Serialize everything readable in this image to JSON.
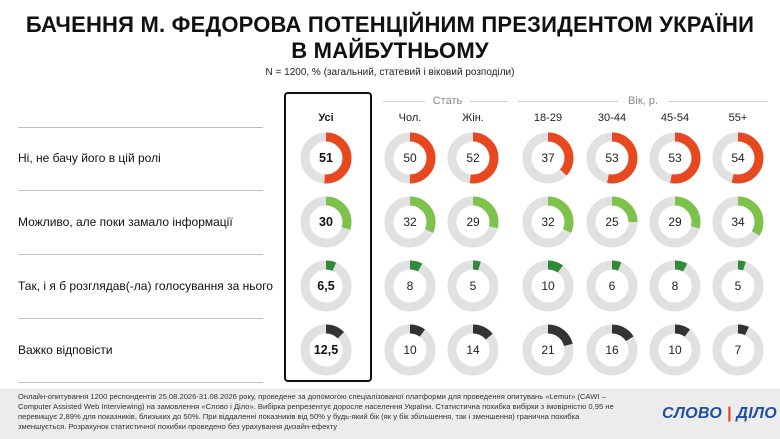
{
  "header": {
    "title_line1": "БАЧЕННЯ М. ФЕДОРОВА ПОТЕНЦІЙНИМ ПРЕЗИДЕНТОМ УКРАЇНИ",
    "title_line2": "В МАЙБУТНЬОМУ",
    "subtitle": "N = 1200, % (загальний, статевий і віковий розподіли)"
  },
  "groups": {
    "sex": "Стать",
    "age": "Вік, р."
  },
  "colors": {
    "no": "#e8481f",
    "maybe": "#7dc24a",
    "yes": "#2f8a3c",
    "hard": "#333333",
    "track": "#e1e1e1"
  },
  "chart_data": {
    "type": "donut-grid",
    "columns": [
      "Усі",
      "Чол.",
      "Жін.",
      "18-29",
      "30-44",
      "45-54",
      "55+"
    ],
    "rows": [
      {
        "label": "Ні, не бачу його в цій ролі",
        "color_key": "no",
        "values": [
          51,
          50,
          52,
          37,
          53,
          53,
          54
        ],
        "display": [
          "51",
          "50",
          "52",
          "37",
          "53",
          "53",
          "54"
        ]
      },
      {
        "label": "Можливо, але поки замало інформації",
        "color_key": "maybe",
        "values": [
          30,
          32,
          29,
          32,
          25,
          29,
          34
        ],
        "display": [
          "30",
          "32",
          "29",
          "32",
          "25",
          "29",
          "34"
        ]
      },
      {
        "label": "Так, і я б розглядав(-ла) голосування за нього",
        "color_key": "yes",
        "values": [
          6.5,
          8,
          5,
          10,
          6,
          8,
          5
        ],
        "display": [
          "6,5",
          "8",
          "5",
          "10",
          "6",
          "8",
          "5"
        ]
      },
      {
        "label": "Важко відповісти",
        "color_key": "hard",
        "values": [
          12.5,
          10,
          14,
          21,
          16,
          10,
          7
        ],
        "display": [
          "12,5",
          "10",
          "14",
          "21",
          "16",
          "10",
          "7"
        ]
      }
    ]
  },
  "footer": {
    "note": "Онлайн-опитування 1200 респондентів 25.08.2026-31.08.2026 року, проведене за допомогою спеціалізованої платформи для проведення опитувань «Lemur» (CAWI – Computer Assisted Web Interviewing) на замовлення «Слово і Діло». Вибірка репрезентує доросле населення України. Статистична похибка вибірки з імовірністю 0,95 не перевищує 2,89% для показників, близьких до 50%. При віддаленні показників від 50% у будь-який бік (як у бік збільшення, так і зменшення) гранична похибка зменшується. Розрахунок статистичної похибки проведено без урахування дизайн-ефекту",
    "logo_left": "СЛОВО",
    "logo_sep": "|",
    "logo_right": "ДІЛО"
  }
}
